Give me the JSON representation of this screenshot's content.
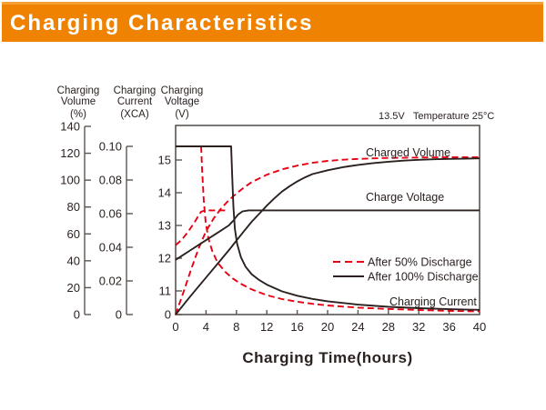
{
  "header": {
    "title": "Charging Characteristics",
    "bg_color": "#ef8200",
    "text_color": "#ffffff"
  },
  "colors": {
    "red": "#e60012",
    "black": "#2b2220",
    "axis": "#5a5552",
    "text": "#2b2220"
  },
  "chart_data": {
    "type": "line",
    "title": "Charging Characteristics",
    "condition_annotation": "13.5V   Temperature 25°C",
    "xlabel": "Charging Time(hours)",
    "x_axis": {
      "range": [
        0,
        40
      ],
      "tick_labels": [
        "0",
        "4",
        "8",
        "12",
        "16",
        "20",
        "24",
        "28",
        "32",
        "36",
        "40"
      ],
      "tick_values": [
        0,
        4,
        8,
        12,
        16,
        20,
        24,
        28,
        32,
        36,
        40
      ]
    },
    "y_axes": {
      "volume": {
        "title_lines": [
          "Charging",
          "Volume",
          "(%)"
        ],
        "range": [
          0,
          140
        ],
        "tick_labels": [
          "0",
          "20",
          "40",
          "60",
          "80",
          "100",
          "120",
          "140"
        ],
        "tick_values": [
          0,
          20,
          40,
          60,
          80,
          100,
          120,
          140
        ]
      },
      "current": {
        "title_lines": [
          "Charging",
          "Current",
          "(XCA)"
        ],
        "range": [
          0,
          0.1
        ],
        "tick_labels": [
          "0",
          "0.02",
          "0.04",
          "0.06",
          "0.08",
          "0.10"
        ],
        "tick_values": [
          0,
          0.02,
          0.04,
          0.06,
          0.08,
          0.1
        ]
      },
      "voltage": {
        "title_lines": [
          "Charging",
          "Voltage",
          "(V)"
        ],
        "range": [
          11,
          15
        ],
        "tick_labels": [
          "0",
          "11",
          "12",
          "13",
          "14",
          "15"
        ],
        "tick_values": [
          0,
          11,
          12,
          13,
          14,
          15
        ]
      }
    },
    "series": [
      {
        "id": "charged-volume-50",
        "group": "After 50% Discharge",
        "quantity": "Charged Volume (%)",
        "axis": "volume",
        "dash": true,
        "color": "red",
        "points": [
          [
            0,
            0
          ],
          [
            1,
            16
          ],
          [
            2,
            33
          ],
          [
            3,
            49
          ],
          [
            4,
            62
          ],
          [
            5,
            71.5
          ],
          [
            6,
            79
          ],
          [
            7,
            85
          ],
          [
            8,
            90
          ],
          [
            9,
            94.5
          ],
          [
            10,
            98.5
          ],
          [
            12,
            104
          ],
          [
            14,
            108
          ],
          [
            16,
            110.8
          ],
          [
            18,
            112.9
          ],
          [
            20,
            114.3
          ],
          [
            22,
            115.2
          ],
          [
            24,
            115.8
          ],
          [
            26,
            116.2
          ],
          [
            28,
            116.5
          ],
          [
            32,
            116.8
          ],
          [
            36,
            117
          ],
          [
            40,
            117.1
          ]
        ]
      },
      {
        "id": "charged-volume-100",
        "group": "After 100% Discharge",
        "quantity": "Charged Volume (%)",
        "axis": "volume",
        "dash": false,
        "color": "black",
        "points": [
          [
            0,
            0
          ],
          [
            2,
            14
          ],
          [
            4,
            27.5
          ],
          [
            6,
            41
          ],
          [
            7.3,
            50
          ],
          [
            8,
            55
          ],
          [
            9,
            62
          ],
          [
            10,
            69
          ],
          [
            11,
            75
          ],
          [
            12,
            81
          ],
          [
            13,
            86.5
          ],
          [
            14,
            91.5
          ],
          [
            15,
            95.5
          ],
          [
            16,
            99
          ],
          [
            17,
            102
          ],
          [
            18,
            104.5
          ],
          [
            20,
            107.3
          ],
          [
            22,
            109.6
          ],
          [
            24,
            111.3
          ],
          [
            26,
            112.7
          ],
          [
            28,
            113.7
          ],
          [
            30,
            114.5
          ],
          [
            32,
            115.1
          ],
          [
            34,
            115.5
          ],
          [
            36,
            115.8
          ],
          [
            38,
            116
          ],
          [
            40,
            116.2
          ]
        ]
      },
      {
        "id": "charge-voltage-50",
        "group": "After 50% Discharge",
        "quantity": "Charge Voltage (V)",
        "axis": "voltage",
        "dash": true,
        "color": "red",
        "points": [
          [
            0,
            12.4
          ],
          [
            0.5,
            12.5
          ],
          [
            1,
            12.62
          ],
          [
            1.5,
            12.76
          ],
          [
            2,
            12.93
          ],
          [
            2.5,
            13.1
          ],
          [
            3,
            13.3
          ],
          [
            3.35,
            13.42
          ],
          [
            3.9,
            13.46
          ],
          [
            6.6,
            13.46
          ]
        ]
      },
      {
        "id": "charge-voltage-100",
        "group": "After 100% Discharge",
        "quantity": "Charge Voltage (V)",
        "axis": "voltage",
        "dash": false,
        "color": "black",
        "points": [
          [
            0,
            11.95
          ],
          [
            1,
            12.1
          ],
          [
            2,
            12.25
          ],
          [
            3,
            12.4
          ],
          [
            4,
            12.55
          ],
          [
            5,
            12.7
          ],
          [
            6,
            12.85
          ],
          [
            7,
            13.0
          ],
          [
            7.6,
            13.15
          ],
          [
            8.2,
            13.33
          ],
          [
            8.8,
            13.43
          ],
          [
            9.6,
            13.46
          ],
          [
            40,
            13.46
          ]
        ]
      },
      {
        "id": "charging-current-50",
        "group": "After 50% Discharge",
        "quantity": "Charging Current (XCA)",
        "axis": "current",
        "dash": true,
        "color": "red",
        "points": [
          [
            3.35,
            0.1
          ],
          [
            3.5,
            0.085
          ],
          [
            3.7,
            0.068
          ],
          [
            3.95,
            0.055
          ],
          [
            4.3,
            0.0455
          ],
          [
            4.8,
            0.038
          ],
          [
            5.5,
            0.031
          ],
          [
            6.5,
            0.0255
          ],
          [
            7.5,
            0.0215
          ],
          [
            8.5,
            0.0185
          ],
          [
            10,
            0.015
          ],
          [
            12,
            0.0115
          ],
          [
            14,
            0.0092
          ],
          [
            16,
            0.0076
          ],
          [
            18,
            0.0064
          ],
          [
            20,
            0.0054
          ],
          [
            24,
            0.0041
          ],
          [
            28,
            0.0033
          ],
          [
            32,
            0.0027
          ],
          [
            36,
            0.0022
          ],
          [
            40,
            0.0019
          ]
        ]
      },
      {
        "id": "charging-current-100",
        "group": "After 100% Discharge",
        "quantity": "Charging Current (XCA)",
        "axis": "current",
        "dash": false,
        "color": "black",
        "points": [
          [
            0,
            0.1
          ],
          [
            7.3,
            0.1
          ],
          [
            7.45,
            0.082
          ],
          [
            7.6,
            0.064
          ],
          [
            7.8,
            0.051
          ],
          [
            8.1,
            0.042
          ],
          [
            8.6,
            0.034
          ],
          [
            9.2,
            0.0285
          ],
          [
            10,
            0.024
          ],
          [
            11,
            0.0205
          ],
          [
            12,
            0.0178
          ],
          [
            14,
            0.0138
          ],
          [
            16,
            0.0112
          ],
          [
            18,
            0.0093
          ],
          [
            20,
            0.0079
          ],
          [
            24,
            0.0059
          ],
          [
            28,
            0.0046
          ],
          [
            32,
            0.0038
          ],
          [
            36,
            0.0032
          ],
          [
            40,
            0.0028
          ]
        ]
      }
    ],
    "curve_labels": [
      {
        "id": "charged-volume-label",
        "text": "Charged Volume",
        "x": 402,
        "y": 172
      },
      {
        "id": "charge-voltage-label",
        "text": "Charge Voltage",
        "x": 402,
        "y": 221
      },
      {
        "id": "charging-current-label",
        "text": "Charging Current",
        "x": 428,
        "y": 336
      }
    ],
    "condition": {
      "text": "13.5V   Temperature 25°C",
      "x": 416,
      "y": 131
    },
    "legend": {
      "position": "inside-right",
      "items": [
        {
          "label": "After 50% Discharge",
          "dash": true,
          "color": "red"
        },
        {
          "label": "After 100% Discharge",
          "dash": false,
          "color": "black"
        }
      ]
    },
    "grid": false
  }
}
